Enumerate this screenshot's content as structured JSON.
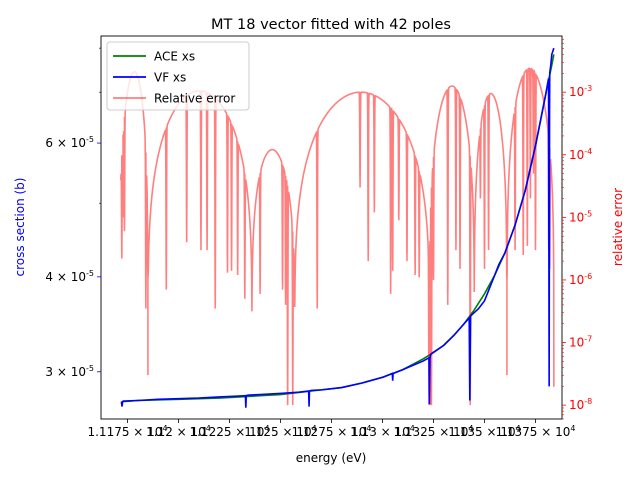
{
  "chart_data": {
    "type": "line",
    "title": "MT 18 vector fitted with 42 poles",
    "xlabel": "energy (eV)",
    "ylabel_left": "cross section (b)",
    "ylabel_right": "relative error",
    "xlim": [
      11162,
      11388
    ],
    "ylim_left": [
      2.6e-05,
      8.3e-05
    ],
    "ylim_right": [
      6e-09,
      0.0079
    ],
    "yscale_left": "log",
    "yscale_right": "log",
    "legend_position": "upper-left",
    "x_tick_labels": [
      {
        "x": 11175,
        "label": "1.1175 × 10^4"
      },
      {
        "x": 11200,
        "label": "1.12 × 10^4"
      },
      {
        "x": 11225,
        "label": "1.1225 × 10^4"
      },
      {
        "x": 11250,
        "label": "1.125 × 10^4"
      },
      {
        "x": 11275,
        "label": "1.1275 × 10^4"
      },
      {
        "x": 11300,
        "label": "1.13 × 10^4"
      },
      {
        "x": 11325,
        "label": "1.1325 × 10^4"
      },
      {
        "x": 11350,
        "label": "1.135 × 10^4"
      },
      {
        "x": 11375,
        "label": "1.1375 × 10^4"
      }
    ],
    "y_left_tick_labels": [
      {
        "y": 3e-05,
        "label": "3 × 10^-5"
      },
      {
        "y": 4e-05,
        "label": "4 × 10^-5"
      },
      {
        "y": 6e-05,
        "label": "6 × 10^-5"
      }
    ],
    "y_right_tick_labels": [
      {
        "y": 1e-08,
        "label": "10^-8"
      },
      {
        "y": 1e-07,
        "label": "10^-7"
      },
      {
        "y": 1e-06,
        "label": "10^-6"
      },
      {
        "y": 1e-05,
        "label": "10^-5"
      },
      {
        "y": 0.0001,
        "label": "10^-4"
      },
      {
        "y": 0.001,
        "label": "10^-3"
      }
    ],
    "series": [
      {
        "name": "ACE xs",
        "color": "#008000",
        "axis": "left",
        "x": [
          11172,
          11180,
          11200,
          11220,
          11230,
          11240,
          11250,
          11260,
          11270,
          11280,
          11290,
          11300,
          11310,
          11315,
          11320,
          11325,
          11330,
          11335,
          11340,
          11345,
          11350,
          11355,
          11360,
          11365,
          11370,
          11375,
          11380,
          11383,
          11384
        ],
        "y": [
          2.74e-05,
          2.75e-05,
          2.76e-05,
          2.77e-05,
          2.78e-05,
          2.79e-05,
          2.8e-05,
          2.82e-05,
          2.84e-05,
          2.86e-05,
          2.9e-05,
          2.95e-05,
          3.02e-05,
          3.07e-05,
          3.12e-05,
          3.18e-05,
          3.25e-05,
          3.35e-05,
          3.47e-05,
          3.62e-05,
          3.8e-05,
          4.02e-05,
          4.3e-05,
          4.68e-05,
          5.2e-05,
          5.95e-05,
          6.95e-05,
          7.6e-05,
          7.85e-05
        ]
      },
      {
        "name": "VF xs",
        "color": "#0000ff",
        "axis": "left",
        "x": [
          11172,
          11172.3,
          11172.6,
          11173,
          11180,
          11190,
          11200,
          11210,
          11220,
          11227,
          11232.8,
          11233,
          11233.2,
          11234,
          11240,
          11250,
          11259,
          11263.8,
          11264,
          11264.2,
          11265,
          11270,
          11280,
          11290,
          11300,
          11304.8,
          11305,
          11305.2,
          11306,
          11310,
          11315,
          11320,
          11322.8,
          11323,
          11323.3,
          11323.6,
          11324,
          11330,
          11335,
          11340,
          11342.5,
          11342.8,
          11343.2,
          11344,
          11347,
          11350,
          11355,
          11357,
          11360,
          11365,
          11370,
          11375,
          11380,
          11381.4,
          11381.7,
          11381.9,
          11382,
          11382.5,
          11383,
          11384
        ],
        "y": [
          2.74e-05,
          2.7e-05,
          2.74e-05,
          2.745e-05,
          2.75e-05,
          2.76e-05,
          2.765e-05,
          2.77e-05,
          2.78e-05,
          2.785e-05,
          2.79e-05,
          2.69e-05,
          2.79e-05,
          2.795e-05,
          2.8e-05,
          2.81e-05,
          2.82e-05,
          2.83e-05,
          2.7e-05,
          2.83e-05,
          2.835e-05,
          2.84e-05,
          2.86e-05,
          2.9e-05,
          2.95e-05,
          2.985e-05,
          2.92e-05,
          2.985e-05,
          2.99e-05,
          3.02e-05,
          3.06e-05,
          3.1e-05,
          3.13e-05,
          2.72e-05,
          3.13e-05,
          3.16e-05,
          3.17e-05,
          3.25e-05,
          3.35e-05,
          3.47e-05,
          3.53e-05,
          2.75e-05,
          3.55e-05,
          3.57e-05,
          3.63e-05,
          3.72e-05,
          4.02e-05,
          4.15e-05,
          4.3e-05,
          4.68e-05,
          5.2e-05,
          5.95e-05,
          6.95e-05,
          7.3e-05,
          2.87e-05,
          6.6e-05,
          7.42e-05,
          7.6e-05,
          7.85e-05,
          8e-05
        ]
      },
      {
        "name": "Relative error",
        "color": "#ff0000",
        "opacity": 0.5,
        "axis": "right",
        "dips": [
          [
            11172.2,
            2.2e-06
          ],
          [
            11172.8,
            1e-05
          ],
          [
            11173.5,
            6e-06
          ],
          [
            11184,
            3.5e-07
          ],
          [
            11185,
            1.2e-06
          ],
          [
            11194,
            7e-07
          ],
          [
            11204,
            4e-06
          ],
          [
            11211,
            3e-06
          ],
          [
            11214,
            3e-06
          ],
          [
            11218,
            3.5e-07
          ],
          [
            11224,
            1.3e-06
          ],
          [
            11226,
            1.4e-06
          ],
          [
            11229,
            1.2e-06
          ],
          [
            11232.5,
            5e-07
          ],
          [
            11240,
            6e-07
          ],
          [
            11251,
            7e-07
          ],
          [
            11252.5,
            4e-07
          ],
          [
            11253.5,
            1e-08
          ],
          [
            11256,
            1e-08
          ],
          [
            11268,
            3.5e-07
          ],
          [
            11289,
            3e-05
          ],
          [
            11293,
            2e-06
          ],
          [
            11296,
            1.2e-05
          ],
          [
            11304,
            6e-07
          ],
          [
            11305,
            1.4e-06
          ],
          [
            11308,
            9e-06
          ],
          [
            11312,
            2e-06
          ],
          [
            11316,
            1.2e-06
          ],
          [
            11318,
            1.1e-06
          ],
          [
            11322.8,
            1e-08
          ],
          [
            11323.6,
            1e-08
          ],
          [
            11324,
            1e-08
          ],
          [
            11325,
            1e-06
          ],
          [
            11332,
            4e-07
          ],
          [
            11336,
            3e-06
          ],
          [
            11338,
            1.5e-06
          ],
          [
            11343,
            1e-08
          ],
          [
            11348,
            2e-05
          ],
          [
            11350,
            1.5e-06
          ],
          [
            11352,
            3e-06
          ],
          [
            11361,
            1e-06
          ],
          [
            11365,
            3e-06
          ],
          [
            11369,
            2.5e-06
          ],
          [
            11371,
            3.5e-06
          ],
          [
            11372.5,
            2e-05
          ],
          [
            11374,
            5e-05
          ],
          [
            11375,
            3e-06
          ],
          [
            11381.5,
            3e-06
          ],
          [
            11382,
            1.5e-06
          ]
        ]
      }
    ]
  }
}
